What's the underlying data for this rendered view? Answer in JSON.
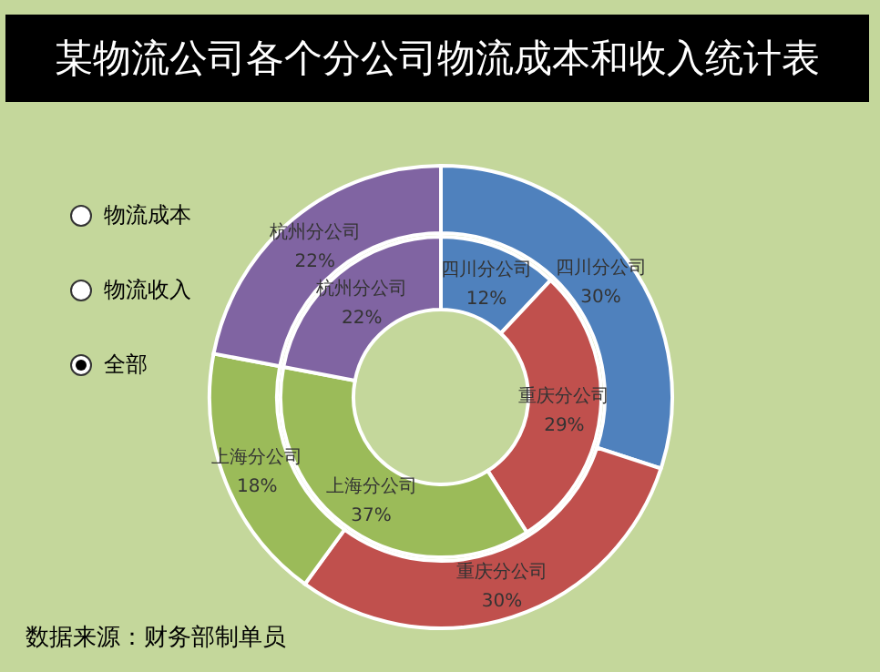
{
  "chart_data": {
    "type": "donut",
    "title": "某物流公司各个分公司物流成本和收入统计表",
    "categories": [
      "四川分公司",
      "重庆分公司",
      "上海分公司",
      "杭州分公司"
    ],
    "colors": [
      "#4f81bd",
      "#c0504d",
      "#9bbb59",
      "#8064a2"
    ],
    "series": [
      {
        "values": [
          30,
          30,
          18,
          22
        ],
        "value_labels": [
          "30%",
          "30%",
          "18%",
          "22%"
        ]
      },
      {
        "values": [
          12,
          29,
          37,
          22
        ],
        "value_labels": [
          "12%",
          "29%",
          "37%",
          "22%"
        ]
      }
    ],
    "annotations": [
      "物流成本",
      "物流收入",
      "全部",
      "数据来源：财务部制单员"
    ]
  }
}
